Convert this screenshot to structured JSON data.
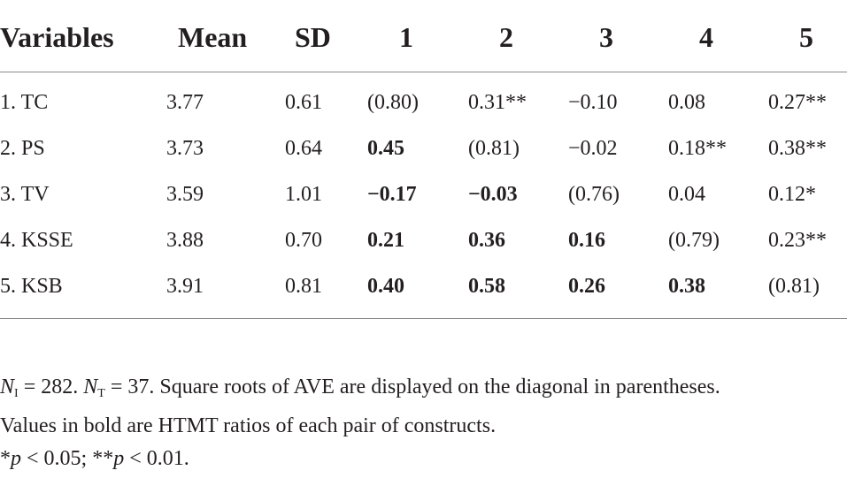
{
  "table": {
    "headers": [
      "Variables",
      "Mean",
      "SD",
      "1",
      "2",
      "3",
      "4",
      "5"
    ],
    "rows": [
      {
        "cells": [
          "1. TC",
          "3.77",
          "0.61",
          "(0.80)",
          "0.31**",
          "−0.10",
          "0.08",
          "0.27**"
        ],
        "bold": [
          false,
          false,
          false,
          false,
          false,
          false,
          false,
          false
        ]
      },
      {
        "cells": [
          "2. PS",
          "3.73",
          "0.64",
          "0.45",
          "(0.81)",
          "−0.02",
          "0.18**",
          "0.38**"
        ],
        "bold": [
          false,
          false,
          false,
          true,
          false,
          false,
          false,
          false
        ]
      },
      {
        "cells": [
          "3. TV",
          "3.59",
          "1.01",
          "−0.17",
          "−0.03",
          "(0.76)",
          "0.04",
          "0.12*"
        ],
        "bold": [
          false,
          false,
          false,
          true,
          true,
          false,
          false,
          false
        ]
      },
      {
        "cells": [
          "4. KSSE",
          "3.88",
          "0.70",
          "0.21",
          "0.36",
          "0.16",
          "(0.79)",
          "0.23**"
        ],
        "bold": [
          false,
          false,
          false,
          true,
          true,
          true,
          false,
          false
        ]
      },
      {
        "cells": [
          "5. KSB",
          "3.91",
          "0.81",
          "0.40",
          "0.58",
          "0.26",
          "0.38",
          "(0.81)"
        ],
        "bold": [
          false,
          false,
          false,
          true,
          true,
          true,
          true,
          false
        ]
      }
    ]
  },
  "notes": {
    "n_i_symbol": "N",
    "n_i_sub": "I",
    "n_i_value": " = 282. ",
    "n_t_symbol": "N",
    "n_t_sub": "T",
    "n_t_value": " = 37. Square roots of AVE are displayed on the diagonal in parentheses.",
    "line2": "Values in bold are HTMT ratios of each pair of constructs.",
    "sig1_prefix": "*",
    "p_symbol": "p",
    "sig1_suffix": " < 0.05; **",
    "sig2_suffix": " < 0.01."
  }
}
